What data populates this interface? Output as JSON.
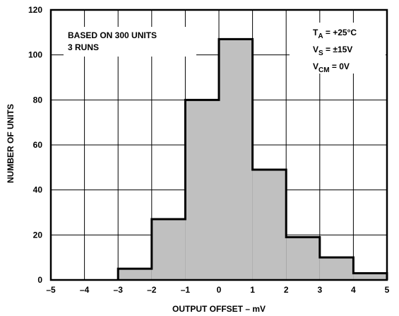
{
  "chart_data": {
    "type": "bar",
    "subtype": "histogram",
    "xlabel": "OUTPUT OFFSET – mV",
    "ylabel": "NUMBER OF UNITS",
    "xlim": [
      -5,
      5
    ],
    "ylim": [
      0,
      120
    ],
    "xticks": [
      "–5",
      "–4",
      "–3",
      "–2",
      "–1",
      "0",
      "1",
      "2",
      "3",
      "4",
      "5"
    ],
    "yticks": [
      "0",
      "20",
      "40",
      "60",
      "80",
      "100",
      "120"
    ],
    "grid": true,
    "bins": [
      {
        "x0": -3,
        "x1": -2,
        "value": 5
      },
      {
        "x0": -2,
        "x1": -1,
        "value": 27
      },
      {
        "x0": -1,
        "x1": 0,
        "value": 80
      },
      {
        "x0": 0,
        "x1": 1,
        "value": 107
      },
      {
        "x0": 1,
        "x1": 2,
        "value": 49
      },
      {
        "x0": 2,
        "x1": 3,
        "value": 19
      },
      {
        "x0": 3,
        "x1": 4,
        "value": 10
      },
      {
        "x0": 4,
        "x1": 5,
        "value": 3
      }
    ],
    "bar_fill": "#c0c0c0",
    "annotations": {
      "left": [
        "BASED ON 300 UNITS",
        "3 RUNS"
      ],
      "ta": {
        "main": "T",
        "sub": "A",
        "rest": " = +25°C"
      },
      "vs": {
        "main": "V",
        "sub": "S",
        "rest": " = ±15V"
      },
      "vcm": {
        "main": "V",
        "sub": "CM",
        "rest": " = 0V"
      }
    }
  }
}
